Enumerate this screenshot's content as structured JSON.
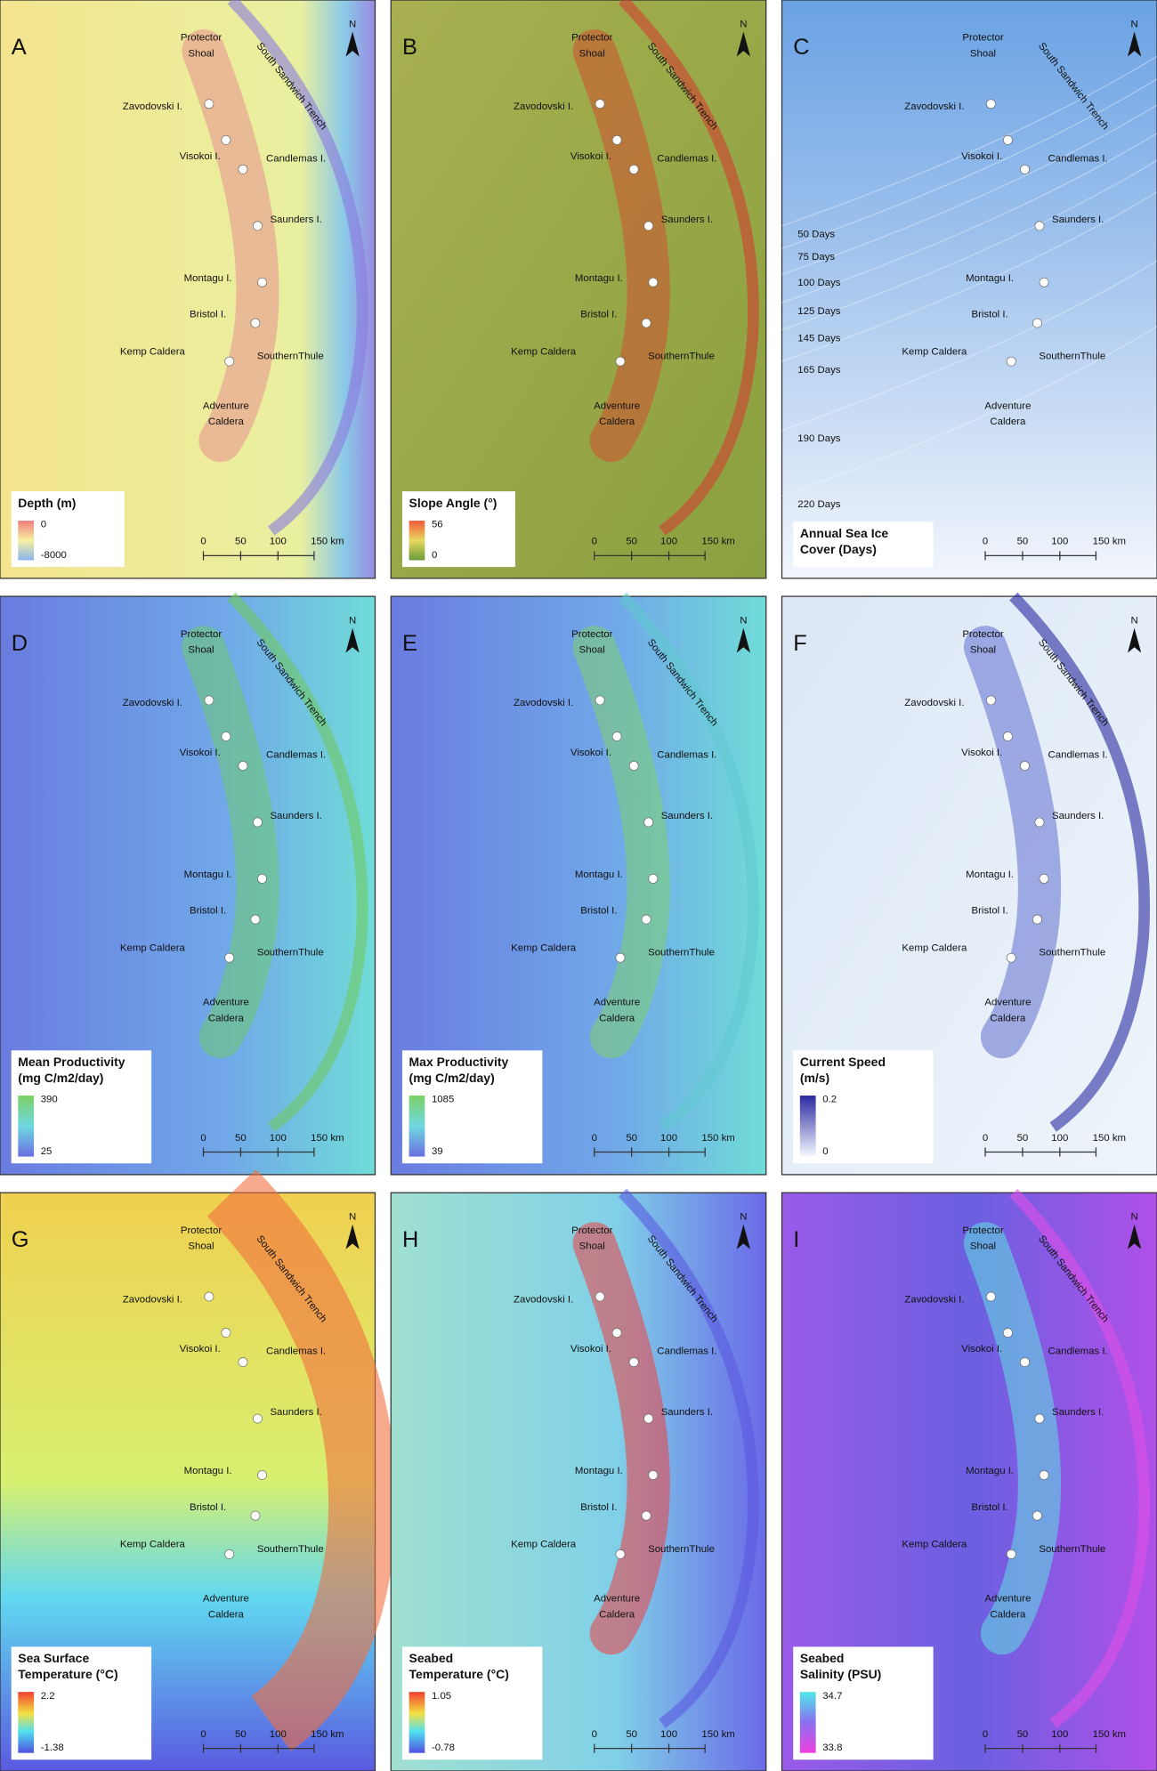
{
  "figure": {
    "north": "N",
    "scale_bar": [
      "0",
      "50",
      "100",
      "150 km"
    ],
    "trench": "South Sandwich Trench",
    "places": [
      [
        "Protector",
        "Shoal"
      ],
      [
        "Zavodovski I."
      ],
      [
        "Visokoi I."
      ],
      [
        "Candlemas I."
      ],
      [
        "Saunders I."
      ],
      [
        "Montagu I."
      ],
      [
        "Bristol I."
      ],
      [
        "Kemp Caldera"
      ],
      [
        "SouthernThule"
      ],
      [
        "Adventure",
        "Caldera"
      ]
    ]
  },
  "panels": [
    {
      "letter": "A",
      "legend_title": [
        "Depth (m)"
      ],
      "legend_max": 0,
      "legend_min": -8000
    },
    {
      "letter": "B",
      "legend_title": [
        "Slope Angle (°)"
      ],
      "legend_max": 56,
      "legend_min": 0
    },
    {
      "letter": "C",
      "legend_title": [
        "Annual Sea Ice",
        "Cover (Days)"
      ],
      "ice_days": [
        "50 Days",
        "75 Days",
        "100 Days",
        "125 Days",
        "145 Days",
        "165 Days",
        "190 Days",
        "220 Days"
      ]
    },
    {
      "letter": "D",
      "legend_title": [
        "Mean Productivity",
        "(mg C/m2/day)"
      ],
      "legend_max": 390,
      "legend_min": 25
    },
    {
      "letter": "E",
      "legend_title": [
        "Max Productivity",
        "(mg C/m2/day)"
      ],
      "legend_max": 1085,
      "legend_min": 39
    },
    {
      "letter": "F",
      "legend_title": [
        "Current Speed",
        "(m/s)"
      ],
      "legend_max": 0.2,
      "legend_min": 0
    },
    {
      "letter": "G",
      "legend_title": [
        "Sea Surface",
        "Temperature (°C)"
      ],
      "legend_max": 2.2,
      "legend_min": -1.38
    },
    {
      "letter": "H",
      "legend_title": [
        "Seabed",
        "Temperature (°C)"
      ],
      "legend_max": 1.05,
      "legend_min": -0.78
    },
    {
      "letter": "I",
      "legend_title": [
        "Seabed",
        "Salinity (PSU)"
      ],
      "legend_max": 34.7,
      "legend_min": 33.8
    }
  ]
}
